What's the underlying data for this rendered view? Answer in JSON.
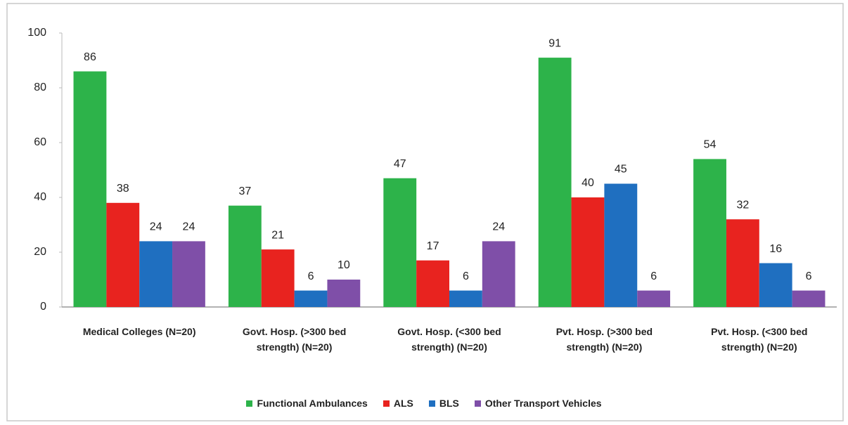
{
  "chart_data": {
    "type": "bar",
    "categories": [
      "Medical Colleges (N=20)",
      "Govt. Hosp. (>300 bed strength) (N=20)",
      "Govt. Hosp. (<300 bed strength) (N=20)",
      "Pvt. Hosp. (>300 bed strength) (N=20)",
      "Pvt. Hosp. (<300 bed strength) (N=20)"
    ],
    "series": [
      {
        "name": "Functional Ambulances",
        "color": "#2db34a",
        "values": [
          86,
          37,
          47,
          91,
          54
        ]
      },
      {
        "name": "ALS",
        "color": "#e8231f",
        "values": [
          38,
          21,
          17,
          40,
          32
        ]
      },
      {
        "name": "BLS",
        "color": "#1f6fc0",
        "values": [
          24,
          6,
          6,
          45,
          16
        ]
      },
      {
        "name": "Other Transport Vehicles",
        "color": "#7f4fa8",
        "values": [
          24,
          10,
          24,
          6,
          6
        ]
      }
    ],
    "ylim": [
      0,
      100
    ],
    "yticks": [
      0,
      20,
      40,
      60,
      80,
      100
    ],
    "grid": false,
    "legend": "bottom"
  }
}
